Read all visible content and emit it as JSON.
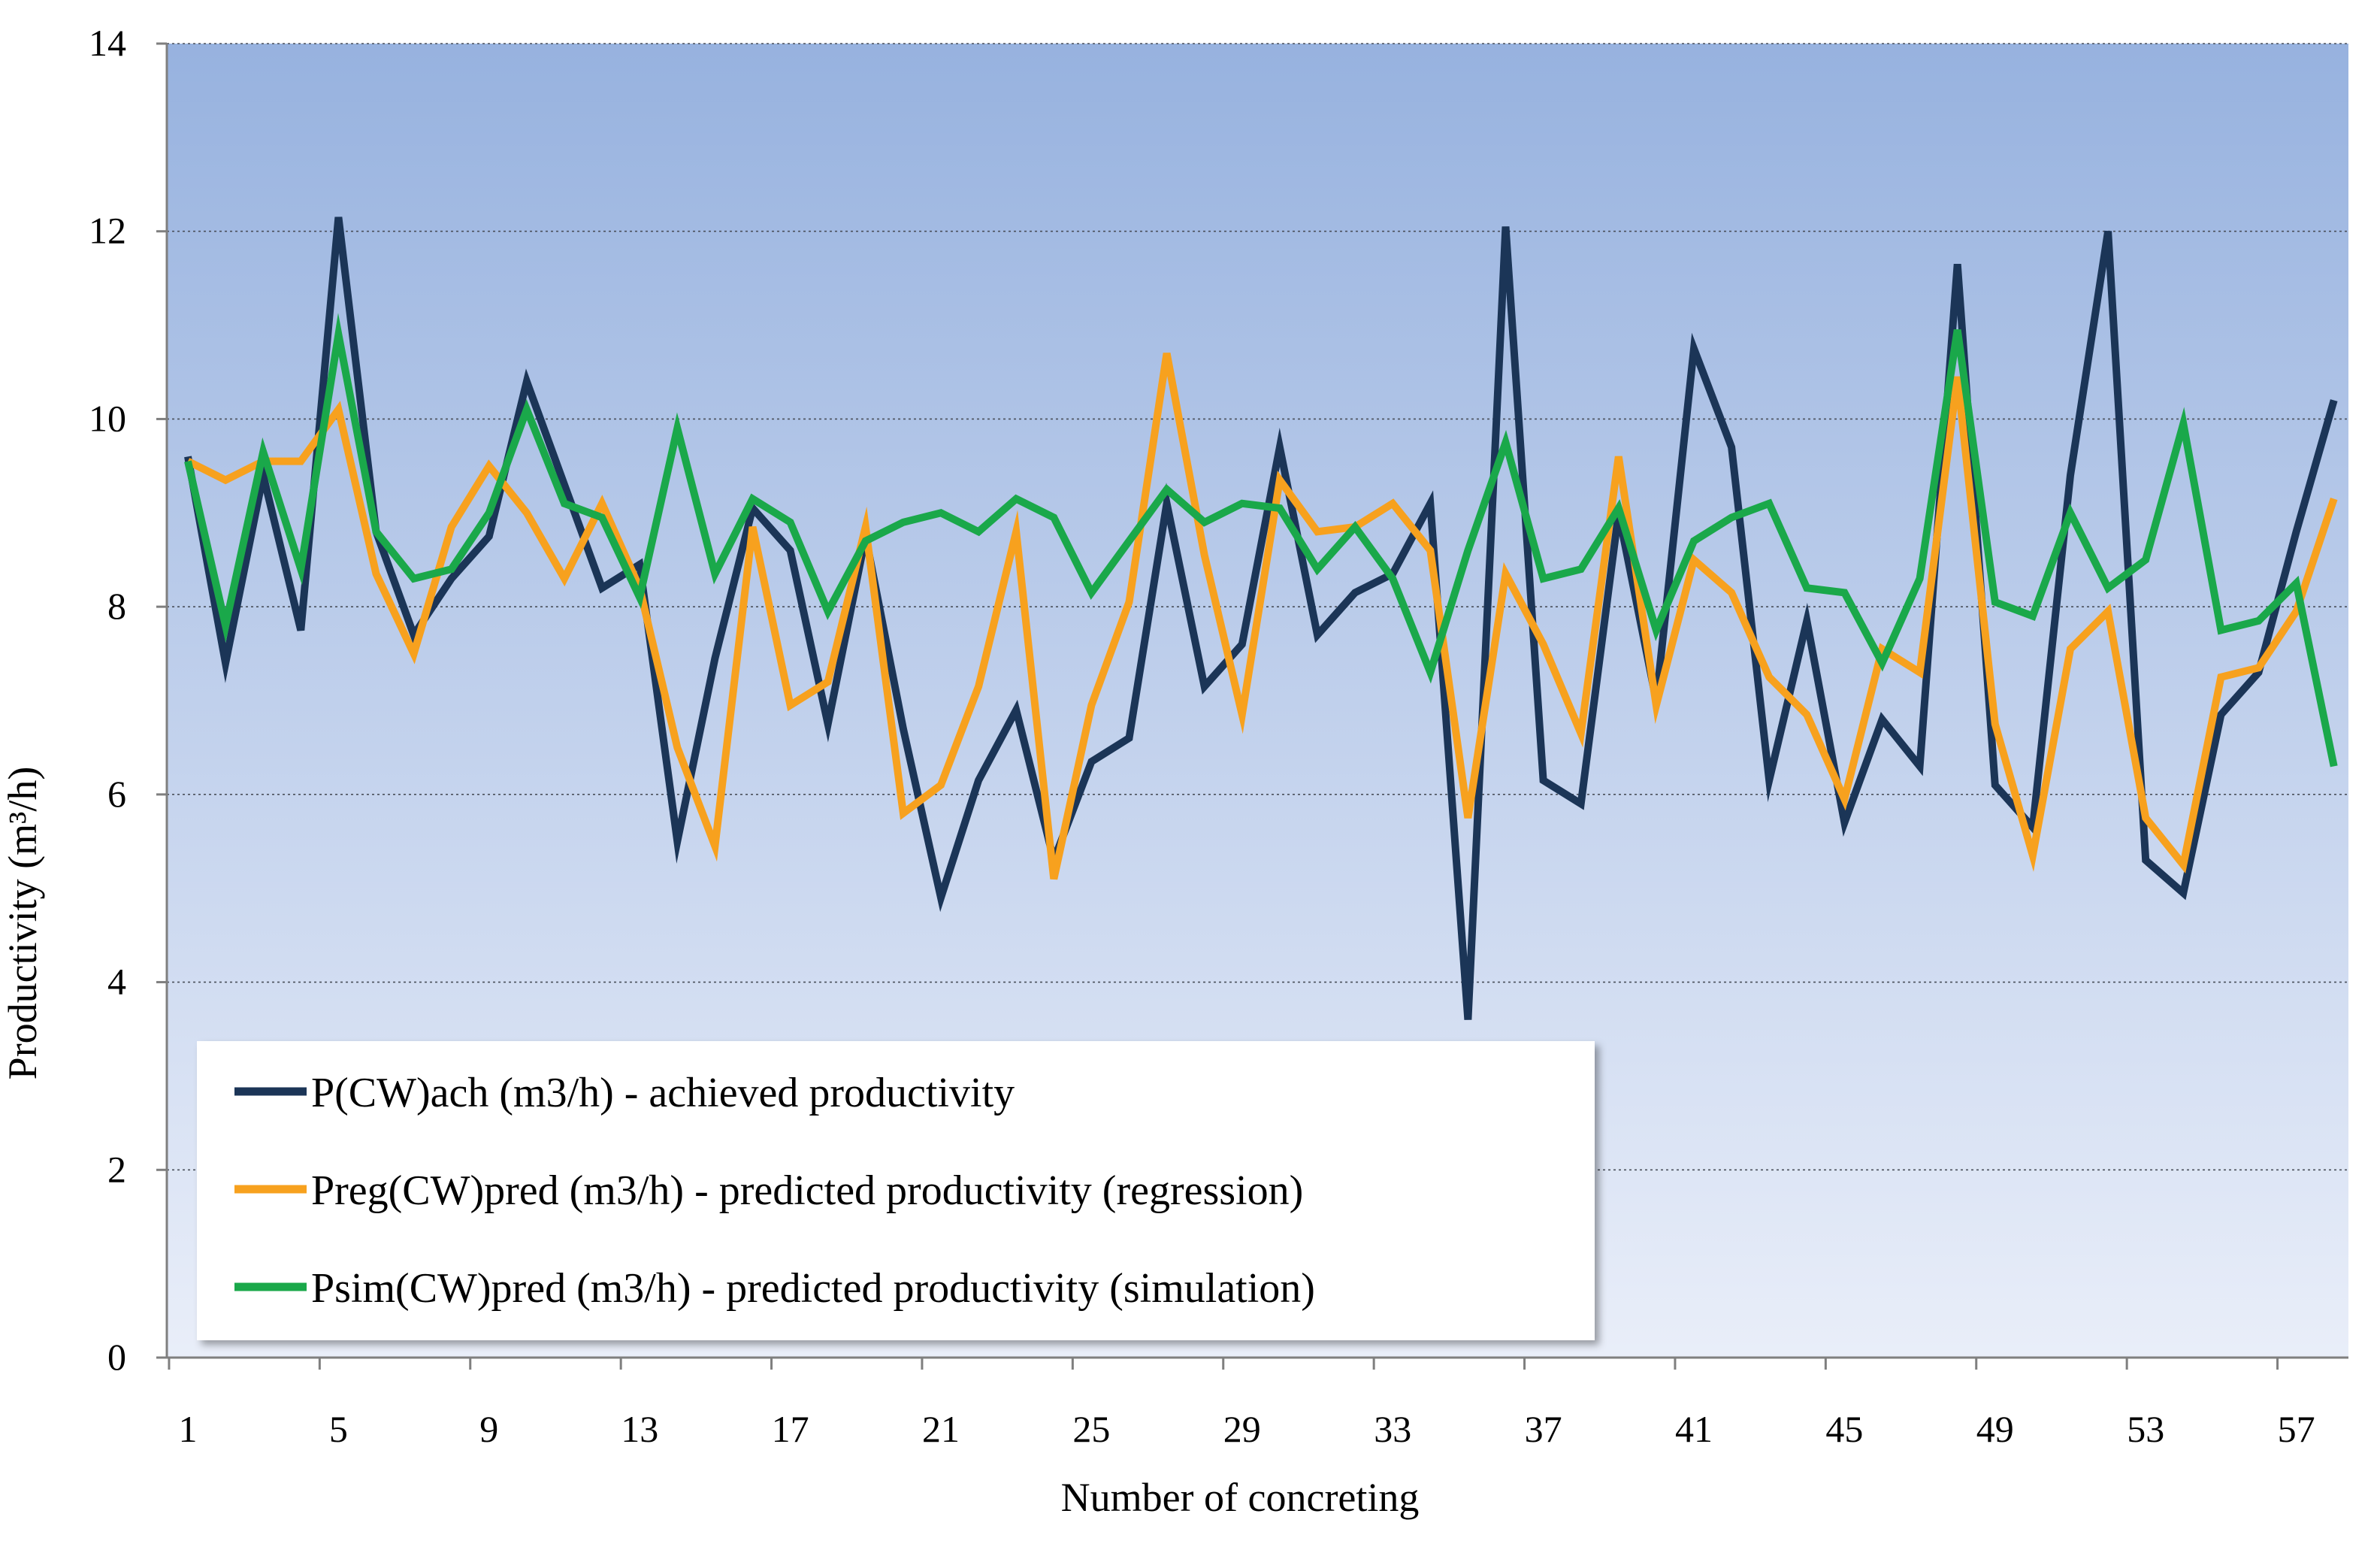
{
  "chart_data": {
    "type": "line",
    "title": "",
    "xlabel": "Number of concreting",
    "ylabel": "Productivity  (m³/h)",
    "ylim": [
      0,
      14
    ],
    "yticks": [
      "0",
      "2",
      "4",
      "6",
      "8",
      "10",
      "12",
      "14"
    ],
    "xticks": [
      "1",
      "5",
      "9",
      "13",
      "17",
      "21",
      "25",
      "29",
      "33",
      "37",
      "41",
      "45",
      "49",
      "53",
      "57"
    ],
    "grid": true,
    "legend_position": "bottom-left",
    "series": [
      {
        "name": "P(CW)ach (m3/h) - achieved productivity",
        "color": "#1b3557",
        "values": [
          9.6,
          7.4,
          9.4,
          7.75,
          12.15,
          8.8,
          7.7,
          8.3,
          8.75,
          10.4,
          9.3,
          8.2,
          8.45,
          5.5,
          7.45,
          9.05,
          8.6,
          6.75,
          8.75,
          6.7,
          4.9,
          6.15,
          6.9,
          5.3,
          6.35,
          6.6,
          9.1,
          7.15,
          7.6,
          9.7,
          7.7,
          8.15,
          8.35,
          9.1,
          3.6,
          12.05,
          6.15,
          5.9,
          9.0,
          7.0,
          10.75,
          9.7,
          6.15,
          7.85,
          5.7,
          6.8,
          6.3,
          11.65,
          6.1,
          5.65,
          9.4,
          12.0,
          5.3,
          4.95,
          6.85,
          7.3,
          8.8,
          10.2
        ]
      },
      {
        "name": "Preg(CW)pred (m3/h) - predicted productivity (regression)",
        "color": "#f7a11e",
        "values": [
          9.55,
          9.35,
          9.55,
          9.55,
          10.1,
          8.35,
          7.5,
          8.85,
          9.5,
          9.0,
          8.3,
          9.1,
          8.2,
          6.5,
          5.45,
          8.85,
          6.95,
          7.2,
          8.85,
          5.8,
          6.1,
          7.15,
          8.8,
          5.1,
          6.95,
          8.05,
          10.7,
          8.55,
          6.85,
          9.35,
          8.8,
          8.85,
          9.1,
          8.6,
          5.75,
          8.35,
          7.6,
          6.65,
          9.6,
          6.95,
          8.5,
          8.15,
          7.25,
          6.85,
          5.95,
          7.55,
          7.3,
          10.45,
          6.75,
          5.35,
          7.55,
          7.95,
          5.75,
          5.25,
          7.25,
          7.35,
          7.95,
          9.15
        ]
      },
      {
        "name": "Psim(CW)pred (m3/h) - predicted productivity (simulation)",
        "color": "#1aa84a",
        "values": [
          9.55,
          7.8,
          9.65,
          8.4,
          10.9,
          8.8,
          8.3,
          8.4,
          9.0,
          10.1,
          9.1,
          8.95,
          8.1,
          9.9,
          8.35,
          9.15,
          8.9,
          7.95,
          8.7,
          8.9,
          9.0,
          8.8,
          9.15,
          8.95,
          8.15,
          8.7,
          9.25,
          8.9,
          9.1,
          9.05,
          8.4,
          8.85,
          8.3,
          7.3,
          8.6,
          9.75,
          8.3,
          8.4,
          9.05,
          7.75,
          8.7,
          8.95,
          9.1,
          8.2,
          8.15,
          7.4,
          8.3,
          10.95,
          8.05,
          7.9,
          9.0,
          8.2,
          8.5,
          9.95,
          7.75,
          7.85,
          8.25,
          6.3
        ]
      }
    ]
  }
}
